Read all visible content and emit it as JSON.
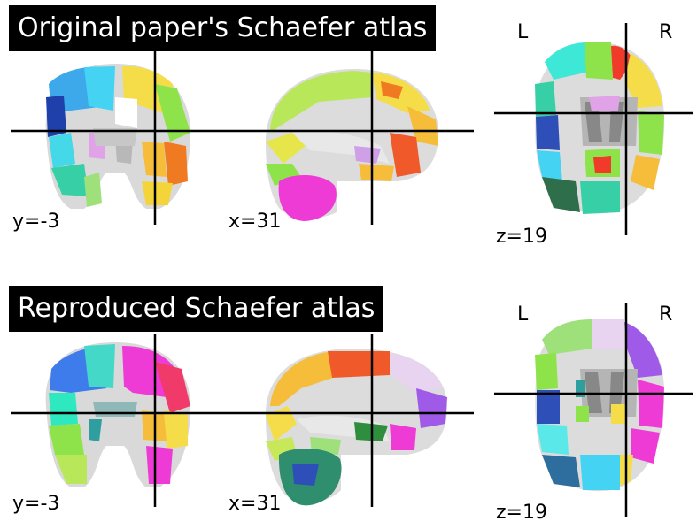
{
  "panels": [
    {
      "title": "Original paper's Schaefer atlas",
      "coronal_label": "y=-3",
      "sagittal_label": "x=31",
      "axial_label": "z=19",
      "orient_left": "L",
      "orient_right": "R"
    },
    {
      "title": "Reproduced Schaefer atlas",
      "coronal_label": "y=-3",
      "sagittal_label": "x=31",
      "axial_label": "z=19",
      "orient_left": "L",
      "orient_right": "R"
    }
  ]
}
